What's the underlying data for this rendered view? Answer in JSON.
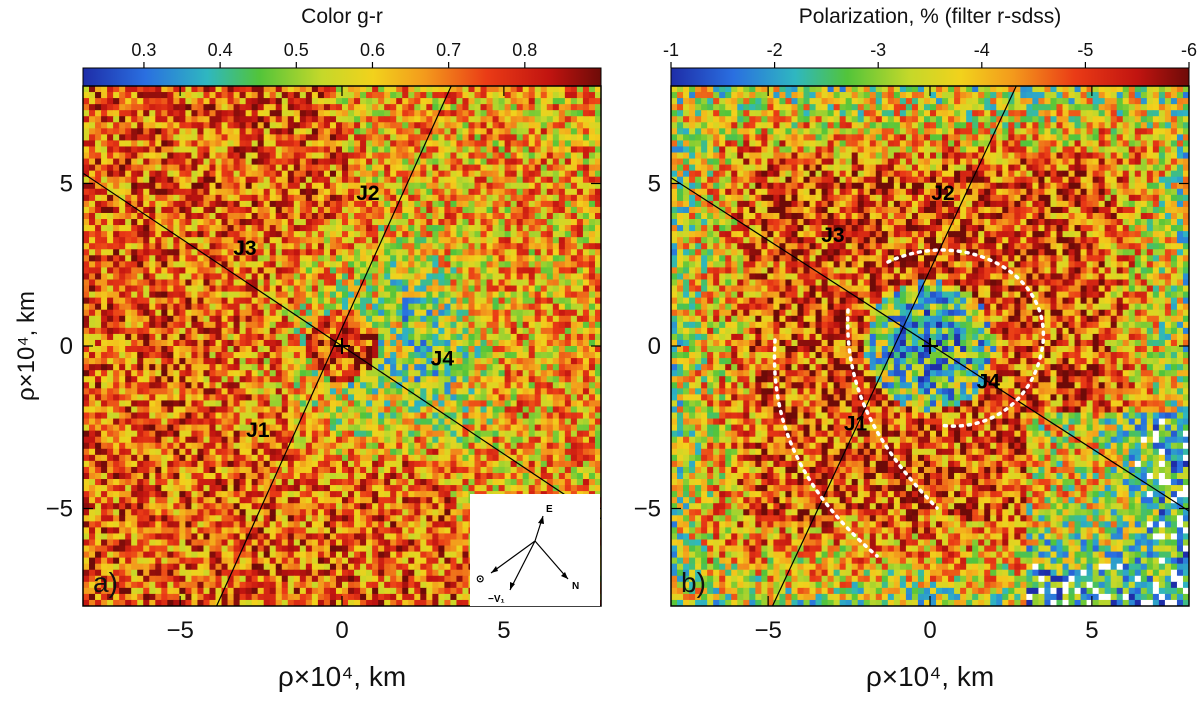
{
  "chart_data": [
    {
      "type": "heatmap",
      "panel_label": "a)",
      "colorbar": {
        "title": "Color g-r",
        "ticks": [
          "0.3",
          "0.4",
          "0.5",
          "0.6",
          "0.7",
          "0.8"
        ],
        "tick_values": [
          0.3,
          0.4,
          0.5,
          0.6,
          0.7,
          0.8
        ],
        "range": [
          0.22,
          0.9
        ]
      },
      "xlabel": "ρ×10⁴, km",
      "ylabel": "ρ×10⁴, km",
      "xlim": [
        -8,
        8
      ],
      "ylim": [
        -8,
        8
      ],
      "x_ticks": [
        {
          "value": -5,
          "label": "−5"
        },
        {
          "value": 0,
          "label": "0"
        },
        {
          "value": 5,
          "label": "5"
        }
      ],
      "y_ticks": [
        {
          "value": -5,
          "label": "−5"
        },
        {
          "value": 0,
          "label": "0"
        },
        {
          "value": 5,
          "label": "5"
        }
      ],
      "nucleus": {
        "x": 0,
        "y": 0
      },
      "jet_lines": [
        {
          "x1": -8.5,
          "y1": 5.65,
          "x2": 8.5,
          "y2": -5.65
        },
        {
          "x1": -4.1,
          "y1": -8.5,
          "x2": 3.6,
          "y2": 8.5
        }
      ],
      "jet_labels": [
        {
          "text": "J1",
          "x": -2.6,
          "y": -2.8
        },
        {
          "text": "J2",
          "x": 0.8,
          "y": 4.5
        },
        {
          "text": "J3",
          "x": -3.0,
          "y": 2.8
        },
        {
          "text": "J4",
          "x": 3.1,
          "y": -0.6
        }
      ],
      "orientation_inset": {
        "labels": [
          "E",
          "N",
          "⊙",
          "−V₁"
        ]
      }
    },
    {
      "type": "heatmap",
      "panel_label": "b)",
      "colorbar": {
        "title": "Polarization, % (filter r-sdss)",
        "ticks": [
          "-1",
          "-2",
          "-3",
          "-4",
          "-5",
          "-6"
        ],
        "tick_values": [
          -1,
          -2,
          -3,
          -4,
          -5,
          -6
        ],
        "range": [
          -1,
          -6
        ]
      },
      "xlabel": "ρ×10⁴, km",
      "ylabel": "",
      "xlim": [
        -8,
        8
      ],
      "ylim": [
        -8,
        8
      ],
      "x_ticks": [
        {
          "value": -5,
          "label": "−5"
        },
        {
          "value": 0,
          "label": "0"
        },
        {
          "value": 5,
          "label": "5"
        }
      ],
      "y_ticks": [
        {
          "value": -5,
          "label": "−5"
        },
        {
          "value": 0,
          "label": "0"
        },
        {
          "value": 5,
          "label": "5"
        }
      ],
      "nucleus": {
        "x": 0,
        "y": 0
      },
      "jet_lines": [
        {
          "x1": -8.5,
          "y1": 5.5,
          "x2": 8.5,
          "y2": -5.4
        },
        {
          "x1": -5.1,
          "y1": -8.5,
          "x2": 2.9,
          "y2": 8.5
        }
      ],
      "jet_labels": [
        {
          "text": "J1",
          "x": -2.3,
          "y": -2.6
        },
        {
          "text": "J2",
          "x": 0.4,
          "y": 4.5
        },
        {
          "text": "J3",
          "x": -3.0,
          "y": 3.2
        },
        {
          "text": "J4",
          "x": 1.8,
          "y": -1.3
        }
      ]
    }
  ]
}
